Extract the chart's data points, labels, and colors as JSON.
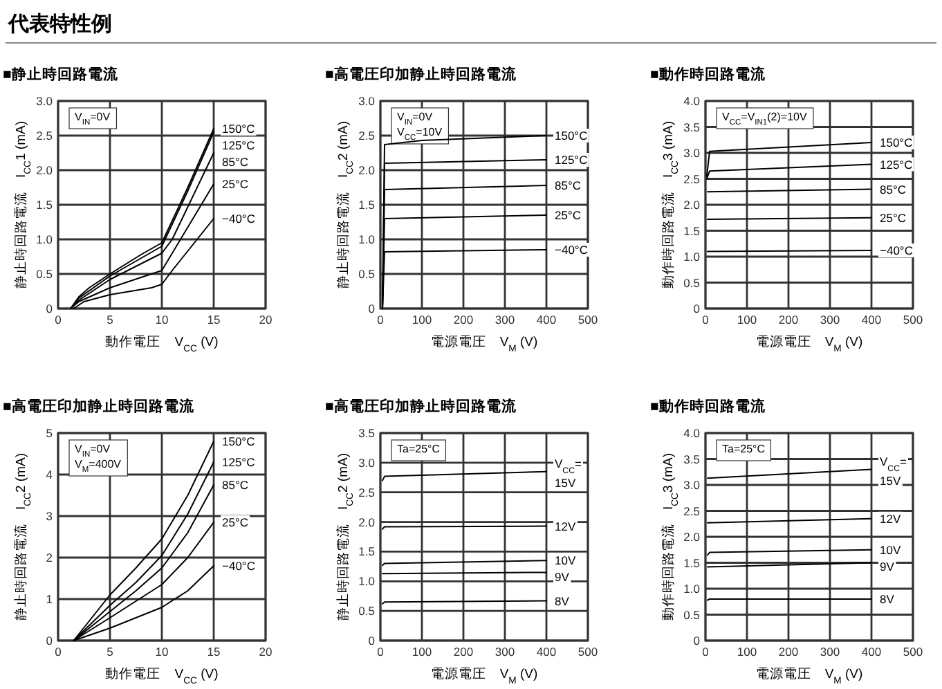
{
  "chart_data": [
    {
      "type": "other",
      "title": "代表特性例"
    },
    {
      "type": "line",
      "title": "■静止時回路電流",
      "xlabel": "動作電圧　V$_{CC}$ (V)",
      "ylabel": "静止時回路電流　I$_{CC}$1 (mA)",
      "xlim": [
        0,
        20
      ],
      "ylim": [
        0,
        3
      ],
      "xticks": [
        0,
        5,
        10,
        15,
        20
      ],
      "yticks": [
        0,
        0.5,
        {
          "value": 1,
          "label": "1.0"
        },
        1.5,
        {
          "value": 2,
          "label": "2.0"
        },
        2.5,
        {
          "value": 3,
          "label": "3.0"
        }
      ],
      "grid": true,
      "annotations": [
        "V$_{IN}$=0V"
      ],
      "series": [
        {
          "name": "150°C",
          "color": "#000000",
          "x": [
            1.2,
            2,
            3,
            5,
            8,
            10,
            12.5,
            15
          ],
          "values": [
            0,
            0.17,
            0.3,
            0.5,
            0.78,
            0.95,
            1.75,
            2.6
          ]
        },
        {
          "name": "125°C",
          "color": "#000000",
          "x": [
            1.2,
            2,
            5,
            10,
            12.5,
            15
          ],
          "values": [
            0,
            0.15,
            0.47,
            0.9,
            1.7,
            2.55
          ]
        },
        {
          "name": "85°C",
          "color": "#000000",
          "x": [
            1.2,
            2,
            5,
            10,
            11,
            15
          ],
          "values": [
            0,
            0.12,
            0.42,
            0.8,
            1.0,
            2.25
          ]
        },
        {
          "name": "25°C",
          "color": "#000000",
          "x": [
            1.2,
            2,
            5,
            9,
            10,
            11,
            15
          ],
          "values": [
            0,
            0.1,
            0.3,
            0.5,
            0.55,
            0.8,
            1.8
          ]
        },
        {
          "name": "−40°C",
          "color": "#000000",
          "x": [
            1.5,
            2.5,
            5,
            9,
            10,
            11,
            15
          ],
          "values": [
            0,
            0.1,
            0.2,
            0.3,
            0.35,
            0.55,
            1.3
          ]
        }
      ]
    },
    {
      "type": "line",
      "title": "■高電圧印加静止時回路電流",
      "xlabel": "電源電圧　V$_{M}$ (V)",
      "ylabel": "静止時回路電流　I$_{CC}$2 (mA)",
      "xlim": [
        0,
        500
      ],
      "ylim": [
        0,
        3
      ],
      "xticks": [
        0,
        100,
        200,
        300,
        400,
        500
      ],
      "yticks": [
        0,
        0.5,
        {
          "value": 1,
          "label": "1.0"
        },
        1.5,
        {
          "value": 2,
          "label": "2.0"
        },
        2.5,
        {
          "value": 3,
          "label": "3.0"
        }
      ],
      "grid": true,
      "annotations": [
        "V$_{IN}$=0V",
        "V$_{CC}$=10V"
      ],
      "series": [
        {
          "name": "150°C",
          "color": "#000000",
          "x": [
            5,
            10,
            100,
            400
          ],
          "values": [
            0,
            2.37,
            2.43,
            2.5
          ]
        },
        {
          "name": "125°C",
          "color": "#000000",
          "x": [
            5,
            10,
            400
          ],
          "values": [
            0,
            2.1,
            2.15
          ]
        },
        {
          "name": "85°C",
          "color": "#000000",
          "x": [
            5,
            10,
            400
          ],
          "values": [
            0,
            1.72,
            1.78
          ]
        },
        {
          "name": "25°C",
          "color": "#000000",
          "x": [
            5,
            10,
            400
          ],
          "values": [
            0,
            1.3,
            1.35
          ]
        },
        {
          "name": "−40°C",
          "color": "#000000",
          "x": [
            5,
            10,
            400
          ],
          "values": [
            0,
            0.82,
            0.85
          ]
        }
      ]
    },
    {
      "type": "line",
      "title": "■動作時回路電流",
      "xlabel": "電源電圧　V$_{M}$ (V)",
      "ylabel": "動作時回路電流　I$_{CC}$3 (mA)",
      "xlim": [
        0,
        500
      ],
      "ylim": [
        0,
        4
      ],
      "xticks": [
        0,
        100,
        200,
        300,
        400,
        500
      ],
      "yticks": [
        0,
        0.5,
        {
          "value": 1,
          "label": "1.0"
        },
        1.5,
        {
          "value": 2,
          "label": "2.0"
        },
        2.5,
        {
          "value": 3,
          "label": "3.0"
        },
        3.5,
        {
          "value": 4,
          "label": "4.0"
        }
      ],
      "grid": true,
      "annotations": [
        "V$_{CC}$=V$_{IN1}$(2)=10V"
      ],
      "series": [
        {
          "name": "150°C",
          "color": "#000000",
          "x": [
            3,
            10,
            400
          ],
          "values": [
            2.55,
            3.03,
            3.2
          ]
        },
        {
          "name": "125°C",
          "color": "#000000",
          "x": [
            3,
            10,
            400
          ],
          "values": [
            2.5,
            2.65,
            2.78
          ]
        },
        {
          "name": "85°C",
          "color": "#000000",
          "x": [
            5,
            400
          ],
          "values": [
            2.25,
            2.3
          ]
        },
        {
          "name": "25°C",
          "color": "#000000",
          "x": [
            5,
            400
          ],
          "values": [
            1.72,
            1.75
          ]
        },
        {
          "name": "−40°C",
          "color": "#000000",
          "x": [
            5,
            400
          ],
          "values": [
            1.1,
            1.12
          ]
        }
      ]
    },
    {
      "type": "line",
      "title": "■高電圧印加静止時回路電流",
      "xlabel": "動作電圧　V$_{CC}$ (V)",
      "ylabel": "静止時回路電流　I$_{CC}$2 (mA)",
      "xlim": [
        0,
        20
      ],
      "ylim": [
        0,
        5
      ],
      "xticks": [
        0,
        5,
        10,
        15,
        20
      ],
      "yticks": [
        0,
        1,
        2,
        3,
        4,
        5
      ],
      "grid": true,
      "annotations": [
        "V$_{IN}$=0V",
        "V$_{M}$=400V"
      ],
      "series": [
        {
          "name": "150°C",
          "color": "#000000",
          "x": [
            1.5,
            5,
            7.5,
            10,
            12.5,
            15
          ],
          "values": [
            0,
            1.1,
            1.75,
            2.45,
            3.5,
            4.8
          ]
        },
        {
          "name": "125°C",
          "color": "#000000",
          "x": [
            1.5,
            5,
            7.5,
            10,
            12.5,
            15
          ],
          "values": [
            0,
            0.85,
            1.4,
            2.05,
            3.05,
            4.3
          ]
        },
        {
          "name": "85°C",
          "color": "#000000",
          "x": [
            1.5,
            5,
            7.5,
            10,
            12.5,
            15
          ],
          "values": [
            0,
            0.7,
            1.2,
            1.75,
            2.6,
            3.75
          ]
        },
        {
          "name": "25°C",
          "color": "#000000",
          "x": [
            1.5,
            5,
            7.5,
            10,
            12.5,
            15
          ],
          "values": [
            0,
            0.55,
            0.95,
            1.35,
            2.0,
            2.85
          ]
        },
        {
          "name": "−40°C",
          "color": "#000000",
          "x": [
            1.5,
            5,
            7.5,
            10,
            12.5,
            15
          ],
          "values": [
            0,
            0.3,
            0.55,
            0.8,
            1.2,
            1.8
          ]
        }
      ]
    },
    {
      "type": "line",
      "title": "■高電圧印加静止時回路電流",
      "xlabel": "電源電圧　V$_{M}$ (V)",
      "ylabel": "静止時回路電流　I$_{CC}$2 (mA)",
      "xlim": [
        0,
        500
      ],
      "ylim": [
        0,
        3.5
      ],
      "xticks": [
        0,
        100,
        200,
        300,
        400,
        500
      ],
      "yticks": [
        0,
        0.5,
        {
          "value": 1,
          "label": "1.0"
        },
        1.5,
        {
          "value": 2,
          "label": "2.0"
        },
        2.5,
        {
          "value": 3,
          "label": "3.0"
        },
        3.5
      ],
      "grid": true,
      "annotations": [
        "Ta=25°C"
      ],
      "legend_title": "V$_{CC}$=",
      "series": [
        {
          "name": "15V",
          "color": "#000000",
          "x": [
            5,
            10,
            400
          ],
          "values": [
            2.7,
            2.77,
            2.85
          ]
        },
        {
          "name": "12V",
          "color": "#000000",
          "x": [
            5,
            10,
            400
          ],
          "values": [
            1.88,
            1.92,
            1.93
          ]
        },
        {
          "name": "10V",
          "color": "#000000",
          "x": [
            5,
            10,
            400
          ],
          "values": [
            1.27,
            1.3,
            1.35
          ]
        },
        {
          "name": "9V",
          "color": "#000000",
          "x": [
            5,
            400
          ],
          "values": [
            1.13,
            1.15
          ]
        },
        {
          "name": "8V",
          "color": "#000000",
          "x": [
            5,
            10,
            400
          ],
          "values": [
            0.62,
            0.65,
            0.67
          ]
        }
      ]
    },
    {
      "type": "line",
      "title": "■動作時回路電流",
      "xlabel": "電源電圧　V$_{M}$ (V)",
      "ylabel": "動作時回路電流　I$_{CC}$3 (mA)",
      "xlim": [
        0,
        500
      ],
      "ylim": [
        0,
        4
      ],
      "xticks": [
        0,
        100,
        200,
        300,
        400,
        500
      ],
      "yticks": [
        0,
        0.5,
        {
          "value": 1,
          "label": "1.0"
        },
        1.5,
        {
          "value": 2,
          "label": "2.0"
        },
        2.5,
        {
          "value": 3,
          "label": "3.0"
        },
        3.5,
        {
          "value": 4,
          "label": "4.0"
        }
      ],
      "grid": true,
      "annotations": [
        "Ta=25°C"
      ],
      "legend_title": "V$_{CC}$=",
      "series": [
        {
          "name": "15V",
          "color": "#000000",
          "x": [
            5,
            400
          ],
          "values": [
            3.13,
            3.3
          ]
        },
        {
          "name": "12V",
          "color": "#000000",
          "x": [
            5,
            400
          ],
          "values": [
            2.27,
            2.35
          ]
        },
        {
          "name": "10V",
          "color": "#000000",
          "x": [
            5,
            10,
            400
          ],
          "values": [
            1.65,
            1.7,
            1.75
          ]
        },
        {
          "name": "9V",
          "color": "#000000",
          "x": [
            5,
            400
          ],
          "values": [
            1.42,
            1.5
          ]
        },
        {
          "name": "8V",
          "color": "#000000",
          "x": [
            5,
            10,
            400
          ],
          "values": [
            0.78,
            0.8,
            0.8
          ]
        }
      ]
    }
  ]
}
